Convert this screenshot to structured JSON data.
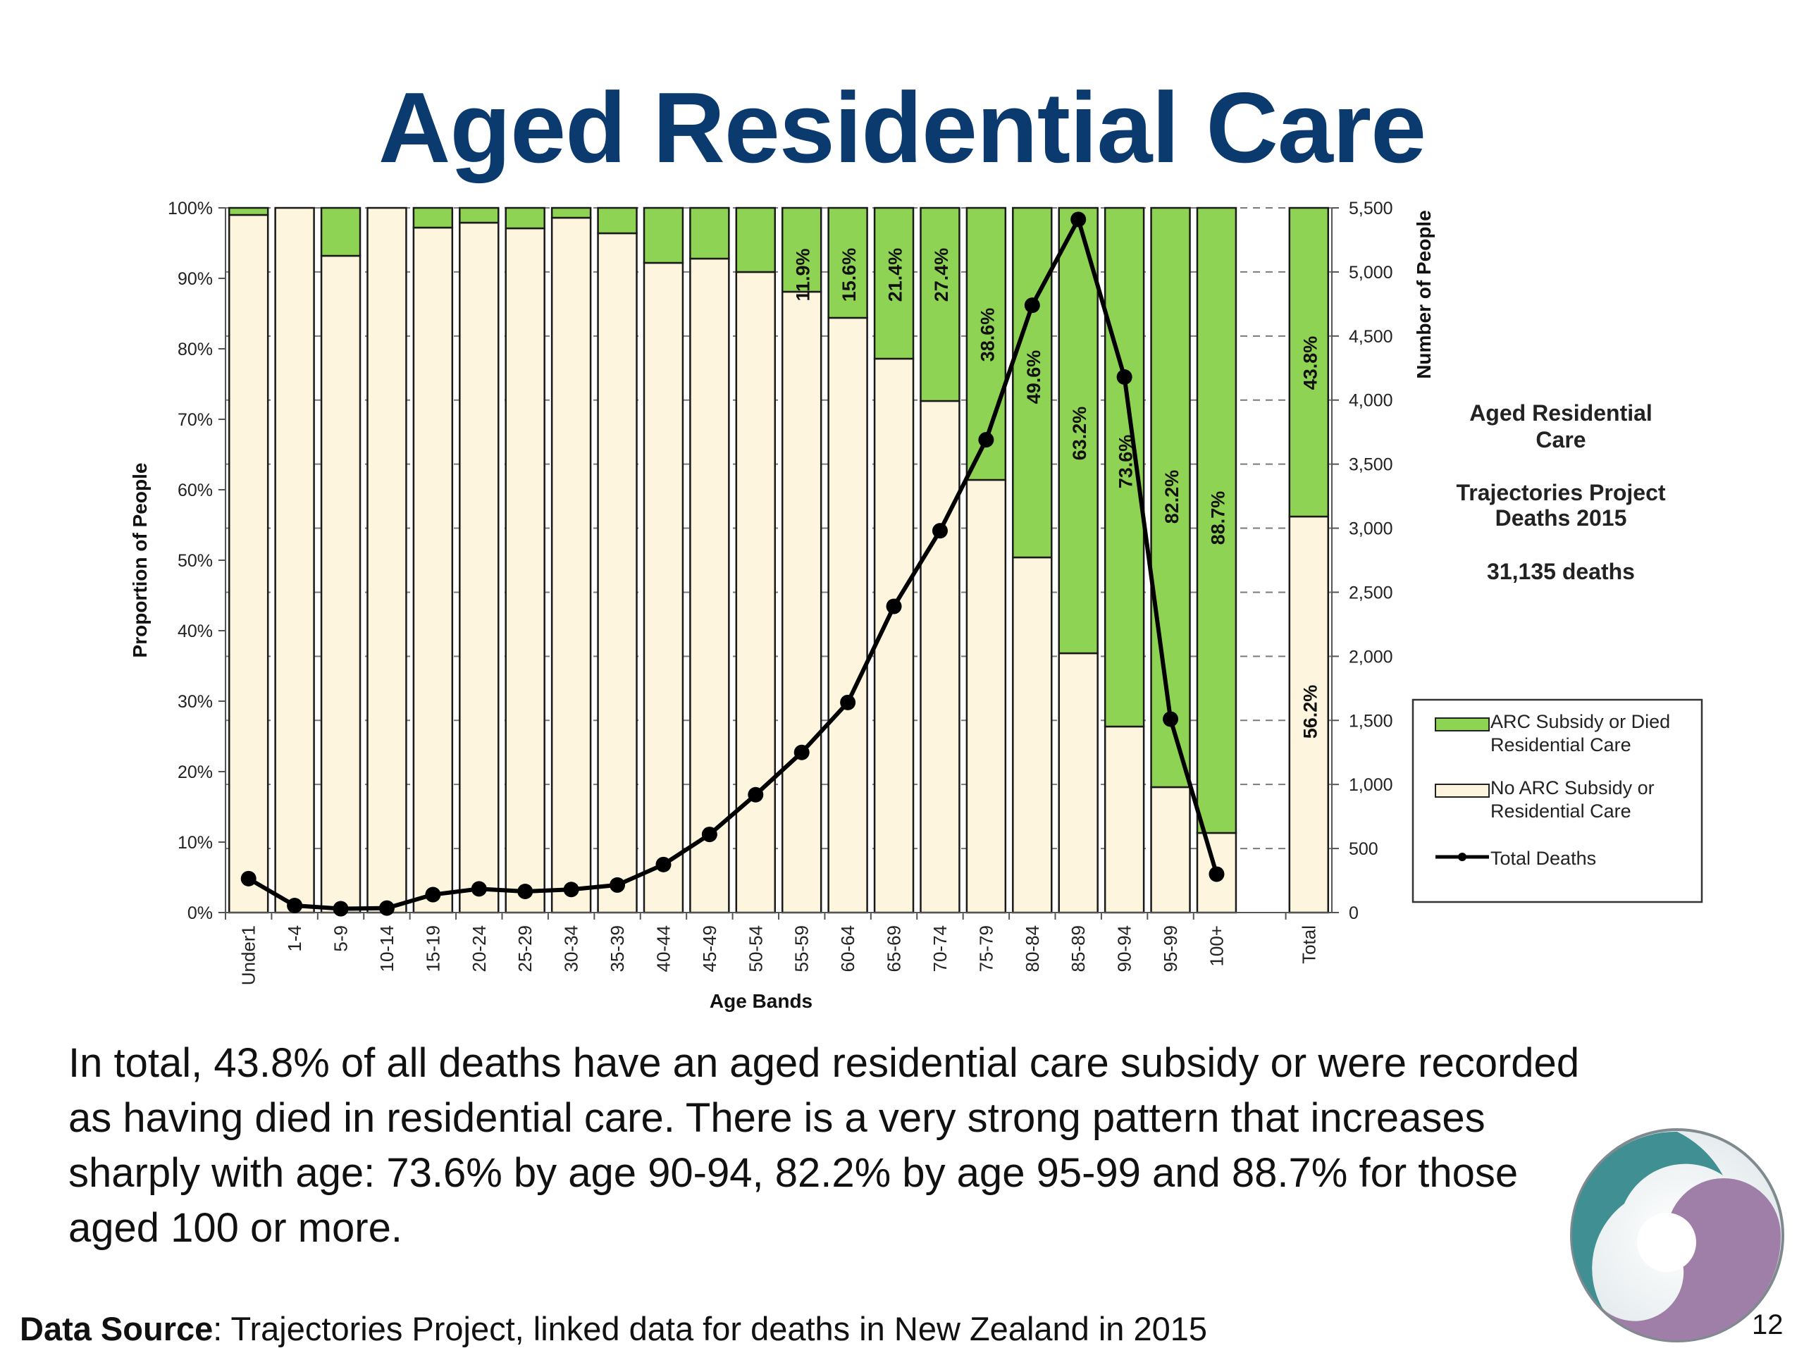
{
  "slide": {
    "title": "Aged Residential Care",
    "body": "In total, 43.8% of all deaths have an aged residential care subsidy or were recorded as having died in residential care. There is a very strong pattern that increases sharply with age: 73.6% by age 90-94,  82.2% by age 95-99 and 88.7% for those aged 100 or more.",
    "source_label": "Data Source",
    "source_text": ": Trajectories Project, linked data for deaths in New Zealand in 2015",
    "page_number": "12"
  },
  "colors": {
    "title": "#0b3a6e",
    "arc": "#8fd354",
    "no_arc": "#fdf5de",
    "line": "#000000"
  },
  "chart_data": {
    "type": "bar",
    "stacked": true,
    "categories": [
      "Under1",
      "1-4",
      "5-9",
      "10-14",
      "15-19",
      "20-24",
      "25-29",
      "30-34",
      "35-39",
      "40-44",
      "45-49",
      "50-54",
      "55-59",
      "60-64",
      "65-69",
      "70-74",
      "75-79",
      "80-84",
      "85-89",
      "90-94",
      "95-99",
      "100+",
      "",
      "Total"
    ],
    "series": [
      {
        "name": "ARC Subsidy or Died Residential Care",
        "color": "#8fd354",
        "values": [
          1.0,
          0.0,
          6.8,
          0.0,
          2.8,
          2.1,
          2.9,
          1.4,
          3.6,
          7.8,
          7.2,
          9.1,
          11.9,
          15.6,
          21.4,
          27.4,
          38.6,
          49.6,
          63.2,
          73.6,
          82.2,
          88.7,
          null,
          43.8
        ],
        "labels": [
          "",
          "",
          "",
          "",
          "",
          "",
          "",
          "",
          "",
          "",
          "",
          "",
          "11.9%",
          "15.6%",
          "21.4%",
          "27.4%",
          "38.6%",
          "49.6%",
          "63.2%",
          "73.6%",
          "82.2%",
          "88.7%",
          "",
          "43.8%"
        ]
      },
      {
        "name": "No ARC Subsidy or Residential Care",
        "color": "#fdf5de",
        "values": [
          99.0,
          100.0,
          93.2,
          100.0,
          97.2,
          97.9,
          97.1,
          98.6,
          96.4,
          92.2,
          92.8,
          90.9,
          88.1,
          84.4,
          78.6,
          72.6,
          61.4,
          50.4,
          36.8,
          26.4,
          17.8,
          11.3,
          null,
          56.2
        ],
        "labels": [
          "",
          "",
          "",
          "",
          "",
          "",
          "",
          "",
          "",
          "",
          "",
          "",
          "",
          "",
          "",
          "",
          "",
          "",
          "",
          "",
          "",
          "",
          "",
          "56.2%"
        ]
      },
      {
        "name": "Total Deaths",
        "type": "line",
        "axis": "right",
        "color": "#000000",
        "values": [
          265,
          55,
          30,
          35,
          140,
          185,
          165,
          180,
          215,
          375,
          610,
          920,
          1250,
          1640,
          2390,
          2980,
          3690,
          4740,
          5410,
          4180,
          1510,
          300,
          null,
          null
        ]
      }
    ],
    "xlabel": "Age Bands",
    "ylabel": "Proportion of People",
    "y2label": "Number of People",
    "ylim": [
      0,
      100
    ],
    "y2lim": [
      0,
      5500
    ],
    "yticks": [
      "0%",
      "10%",
      "20%",
      "30%",
      "40%",
      "50%",
      "60%",
      "70%",
      "80%",
      "90%",
      "100%"
    ],
    "y2ticks": [
      "0",
      "500",
      "1,000",
      "1,500",
      "2,000",
      "2,500",
      "3,000",
      "3,500",
      "4,000",
      "4,500",
      "5,000",
      "5,500"
    ],
    "annotation": {
      "line1": "Aged Residential",
      "line2": "Care",
      "line3": "Trajectories Project",
      "line4": "Deaths 2015",
      "line5": "31,135 deaths"
    },
    "legend_position": "right"
  }
}
